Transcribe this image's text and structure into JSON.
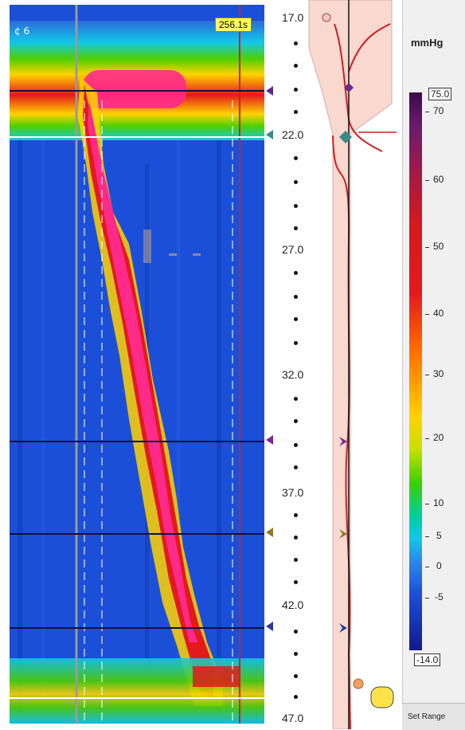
{
  "plot": {
    "time_readout": "256.1s",
    "corner_label": "¢ 6"
  },
  "scale": {
    "top_label": "17.0",
    "labels": [
      "22.0",
      "27.0",
      "32.0",
      "37.0",
      "42.0",
      "47.0"
    ]
  },
  "legend": {
    "unit": "mmHg",
    "max_label": "75.0",
    "min_label": "-14.0",
    "tick_labels": [
      "70",
      "60",
      "50",
      "40",
      "30",
      "20",
      "10",
      "5",
      "0",
      "-5"
    ],
    "set_range_label": "Set Range"
  },
  "colors": {
    "high": "#ff2a8a",
    "mid": "#d7191c",
    "baseline": "#1c4fd8",
    "anatomy_fill": "#f8d8cf",
    "trace": "#d21f1f"
  }
}
